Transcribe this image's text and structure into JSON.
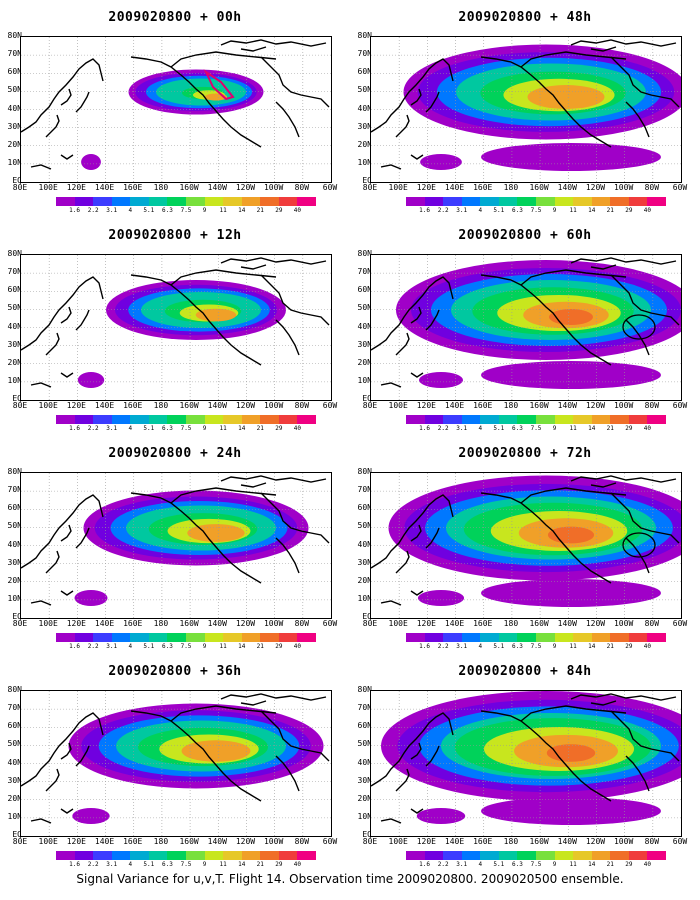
{
  "caption": "Signal Variance for u,v,T. Flight 14. Observation time 2009020800. 2009020500 ensemble.",
  "lat_labels": [
    "80N",
    "70N",
    "60N",
    "50N",
    "40N",
    "30N",
    "20N",
    "10N",
    "EQ"
  ],
  "lon_labels": [
    "80E",
    "100E",
    "120E",
    "140E",
    "160E",
    "180",
    "160W",
    "140W",
    "120W",
    "100W",
    "80W",
    "60W"
  ],
  "colorbar": {
    "ticks": [
      "1.6",
      "2.2",
      "3.1",
      "4",
      "5.1",
      "6.3",
      "7.5",
      "9",
      "11",
      "14",
      "21",
      "29",
      "40"
    ],
    "colors": [
      "#a000c8",
      "#7000e0",
      "#3c3cff",
      "#0078ff",
      "#00aad2",
      "#00c8a0",
      "#00d25a",
      "#78e03c",
      "#c8e61e",
      "#e6c828",
      "#f0a028",
      "#f06e28",
      "#f03c3c",
      "#f00082"
    ]
  },
  "panels": [
    {
      "title": "2009020800 + 00h",
      "intensity": 0.55,
      "spread": 0.45,
      "has_circle": false,
      "has_pink": true
    },
    {
      "title": "2009020800 + 12h",
      "intensity": 0.75,
      "spread": 0.6,
      "has_circle": false,
      "has_pink": false
    },
    {
      "title": "2009020800 + 24h",
      "intensity": 0.85,
      "spread": 0.75,
      "has_circle": false,
      "has_pink": false
    },
    {
      "title": "2009020800 + 36h",
      "intensity": 0.9,
      "spread": 0.85,
      "has_circle": false,
      "has_pink": false
    },
    {
      "title": "2009020800 + 48h",
      "intensity": 0.9,
      "spread": 0.95,
      "has_circle": false,
      "has_pink": false
    },
    {
      "title": "2009020800 + 60h",
      "intensity": 0.95,
      "spread": 1.0,
      "has_circle": true,
      "has_pink": false
    },
    {
      "title": "2009020800 + 72h",
      "intensity": 1.0,
      "spread": 1.05,
      "has_circle": true,
      "has_pink": false
    },
    {
      "title": "2009020800 + 84h",
      "intensity": 1.05,
      "spread": 1.1,
      "has_circle": false,
      "has_pink": false
    }
  ]
}
